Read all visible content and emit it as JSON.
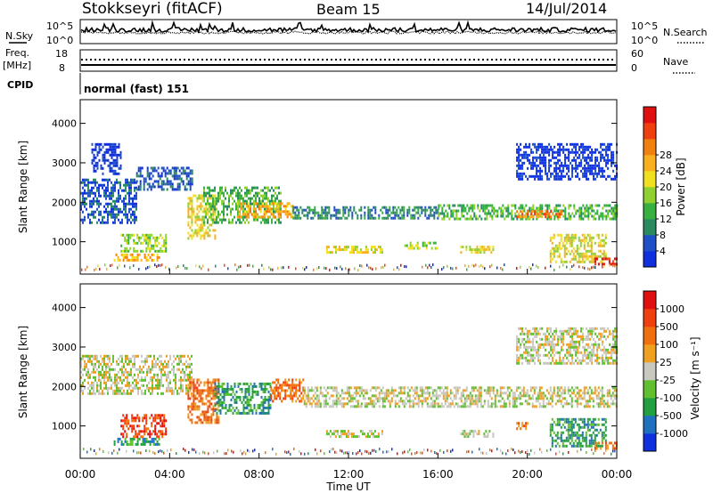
{
  "header": {
    "station": "Stokkseyri (fitACF)",
    "beam": "Beam 15",
    "date": "14/Jul/2014"
  },
  "top_panels": {
    "nsky_label": "N.Sky",
    "nsky_ticks": [
      "10^5",
      "10^0"
    ],
    "nsearch_label": "N.Search",
    "nsearch_ticks": [
      "10^5",
      "10^0"
    ],
    "freq_label_1": "Freq.",
    "freq_label_2": "[MHz]",
    "freq_ticks": [
      "18",
      "8"
    ],
    "nave_label": "Nave",
    "nave_ticks": [
      "60",
      "0"
    ],
    "cpid_label": "CPID",
    "cpid_value": "normal (fast) 151"
  },
  "chart_data": [
    {
      "type": "heatmap",
      "name": "power",
      "ylabel": "Slant Range [km]",
      "yticks": [
        1000,
        2000,
        3000,
        4000
      ],
      "ylim": [
        180,
        4600
      ],
      "xlim": [
        0,
        24
      ],
      "colorbar": {
        "label": "Power [dB]",
        "ticks": [
          "4",
          "8",
          "12",
          "16",
          "20",
          "24",
          "28"
        ],
        "colors": [
          "#1030e0",
          "#2050c8",
          "#2a8a60",
          "#38b040",
          "#90d030",
          "#f0e020",
          "#f8b020",
          "#f08010",
          "#f04010",
          "#e01010"
        ]
      },
      "echo_regions": [
        {
          "t0": 0.0,
          "t1": 2.5,
          "r0": 1500,
          "r1": 2600,
          "level": 1
        },
        {
          "t0": 2.5,
          "t1": 5.0,
          "r0": 2300,
          "r1": 2900,
          "level": 1
        },
        {
          "t0": 0.5,
          "t1": 1.8,
          "r0": 2700,
          "r1": 3500,
          "level": 0
        },
        {
          "t0": 1.5,
          "t1": 3.5,
          "r0": 500,
          "r1": 700,
          "level": 6
        },
        {
          "t0": 1.8,
          "t1": 3.8,
          "r0": 750,
          "r1": 1200,
          "level": 4
        },
        {
          "t0": 4.8,
          "t1": 6.0,
          "r0": 1100,
          "r1": 2200,
          "level": 5
        },
        {
          "t0": 5.5,
          "t1": 9.0,
          "r0": 1500,
          "r1": 2400,
          "level": 3
        },
        {
          "t0": 7.0,
          "t1": 9.5,
          "r0": 1600,
          "r1": 2000,
          "level": 6
        },
        {
          "t0": 9.5,
          "t1": 16.0,
          "r0": 1600,
          "r1": 1900,
          "level": 2
        },
        {
          "t0": 11.0,
          "t1": 13.5,
          "r0": 700,
          "r1": 900,
          "level": 5
        },
        {
          "t0": 14.5,
          "t1": 16.0,
          "r0": 800,
          "r1": 1000,
          "level": 4
        },
        {
          "t0": 16.0,
          "t1": 24.0,
          "r0": 1550,
          "r1": 1950,
          "level": 3
        },
        {
          "t0": 19.5,
          "t1": 21.5,
          "r0": 1600,
          "r1": 1800,
          "level": 7
        },
        {
          "t0": 17.0,
          "t1": 18.5,
          "r0": 700,
          "r1": 900,
          "level": 5
        },
        {
          "t0": 21.0,
          "t1": 23.5,
          "r0": 500,
          "r1": 1200,
          "level": 5
        },
        {
          "t0": 19.5,
          "t1": 24.0,
          "r0": 2600,
          "r1": 3500,
          "level": 0
        },
        {
          "t0": 23.0,
          "t1": 24.0,
          "r0": 400,
          "r1": 600,
          "level": 9
        }
      ]
    },
    {
      "type": "heatmap",
      "name": "velocity",
      "ylabel": "Slant Range [km]",
      "yticks": [
        1000,
        2000,
        3000,
        4000
      ],
      "ylim": [
        180,
        4600
      ],
      "xlim": [
        0,
        24
      ],
      "xticks": [
        "00:00",
        "04:00",
        "08:00",
        "12:00",
        "16:00",
        "20:00",
        "00:00"
      ],
      "xlabel": "Time UT",
      "colorbar": {
        "label": "Velocity [m s⁻¹]",
        "ticks": [
          "1000",
          "500",
          "100",
          "25",
          "-25",
          "-100",
          "-500",
          "-1000"
        ],
        "colors": [
          "#1030e0",
          "#2070c0",
          "#20a040",
          "#60c030",
          "#c8c8c0",
          "#f0a020",
          "#f07010",
          "#f04010",
          "#e01010"
        ]
      },
      "echo_regions": [
        {
          "t0": 0.0,
          "t1": 5.0,
          "r0": 1800,
          "r1": 2800,
          "level": 4
        },
        {
          "t0": 4.8,
          "t1": 6.2,
          "r0": 1100,
          "r1": 2200,
          "level": 6
        },
        {
          "t0": 6.0,
          "t1": 8.5,
          "r0": 1300,
          "r1": 2100,
          "level": 2
        },
        {
          "t0": 8.5,
          "t1": 10.0,
          "r0": 1600,
          "r1": 2200,
          "level": 6
        },
        {
          "t0": 10.0,
          "t1": 24.0,
          "r0": 1500,
          "r1": 2000,
          "level": 4
        },
        {
          "t0": 1.5,
          "t1": 3.5,
          "r0": 500,
          "r1": 700,
          "level": 2
        },
        {
          "t0": 1.8,
          "t1": 3.8,
          "r0": 750,
          "r1": 1300,
          "level": 7
        },
        {
          "t0": 11.0,
          "t1": 13.5,
          "r0": 700,
          "r1": 900,
          "level": 4
        },
        {
          "t0": 17.0,
          "t1": 18.5,
          "r0": 700,
          "r1": 900,
          "level": 4
        },
        {
          "t0": 19.5,
          "t1": 20.0,
          "r0": 900,
          "r1": 1100,
          "level": 6
        },
        {
          "t0": 21.0,
          "t1": 23.5,
          "r0": 500,
          "r1": 1200,
          "level": 2
        },
        {
          "t0": 19.5,
          "t1": 24.0,
          "r0": 2600,
          "r1": 3500,
          "level": 4
        },
        {
          "t0": 23.0,
          "t1": 24.0,
          "r0": 400,
          "r1": 600,
          "level": 6
        }
      ]
    }
  ]
}
